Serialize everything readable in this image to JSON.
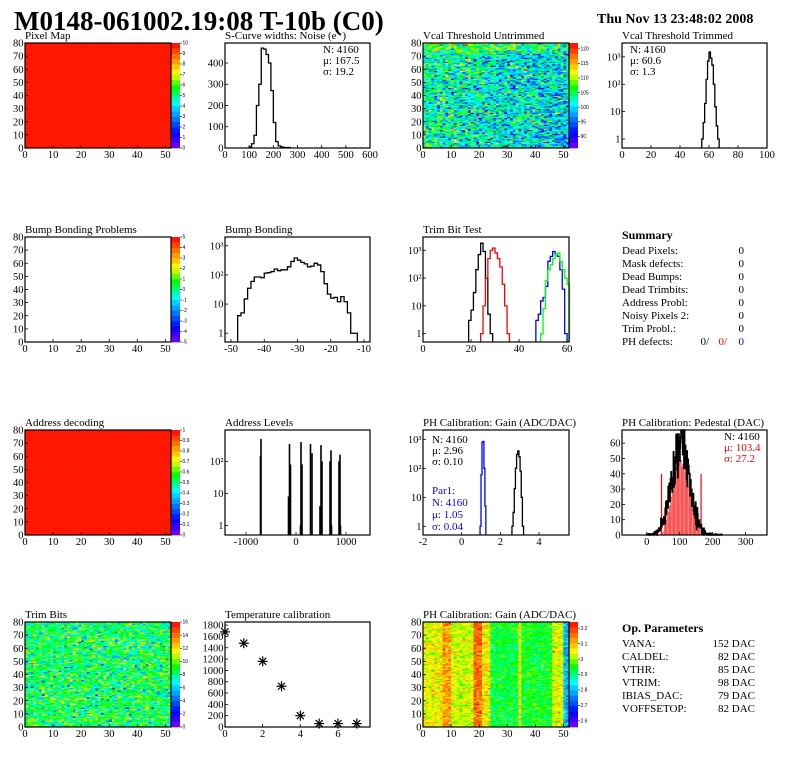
{
  "header": {
    "title": "M0148-061002.19:08 T-10b (C0)",
    "datetime": "Thu Nov 13 23:48:02 2008"
  },
  "colors": {
    "palette": [
      "#7f00ff",
      "#0000ff",
      "#0080ff",
      "#00ffff",
      "#00ff00",
      "#ffff00",
      "#ff8000",
      "#ff0000"
    ],
    "red": "#ff0000",
    "blue": "#0000ff",
    "green": "#00ff00",
    "black": "#000000"
  },
  "chart_data": [
    {
      "id": "pixel-map",
      "title": "Pixel Map",
      "type": "heatmap",
      "xrange": [
        0,
        52
      ],
      "yrange": [
        0,
        80
      ],
      "xticks": [
        0,
        10,
        20,
        30,
        40,
        50
      ],
      "yticks": [
        0,
        10,
        20,
        30,
        40,
        50,
        60,
        70,
        80
      ],
      "zrange": [
        0,
        10
      ],
      "zticks": [
        0,
        1,
        2,
        3,
        4,
        5,
        6,
        7,
        8,
        9,
        10
      ],
      "content": "all pixels at maximum (10)"
    },
    {
      "id": "s-curve-noise",
      "title": "S-Curve widths: Noise (e⁻)",
      "type": "bar",
      "xrange": [
        0,
        600
      ],
      "yrange": [
        0,
        494
      ],
      "xticks": [
        0,
        100,
        200,
        300,
        400,
        500,
        600
      ],
      "yticks": [
        0,
        100,
        200,
        300,
        400
      ],
      "series": [
        {
          "color": "#000000",
          "start": 100,
          "width": 10,
          "counts": [
            5,
            20,
            60,
            200,
            300,
            470,
            465,
            440,
            400,
            270,
            120,
            30,
            10,
            5,
            3,
            2,
            2
          ]
        }
      ],
      "stats": [
        {
          "text": "N: 4160",
          "color": "#000000"
        },
        {
          "text": "μ: 167.5",
          "color": "#000000"
        },
        {
          "text": "σ: 19.2",
          "color": "#000000"
        }
      ]
    },
    {
      "id": "vcal-threshold-untrimmed",
      "title": "Vcal Threshold Untrimmed",
      "type": "heatmap",
      "xrange": [
        0,
        52
      ],
      "yrange": [
        0,
        80
      ],
      "xticks": [
        0,
        10,
        20,
        30,
        40,
        50
      ],
      "yticks": [
        0,
        10,
        20,
        30,
        40,
        50,
        60,
        70,
        80
      ],
      "zrange": [
        86,
        122
      ],
      "zticks": [
        90,
        95,
        100,
        105,
        110,
        115,
        120
      ]
    },
    {
      "id": "vcal-threshold-trimmed",
      "title": "Vcal Threshold Trimmed",
      "type": "bar",
      "ylog": true,
      "xrange": [
        0,
        100
      ],
      "yrange": [
        0.47,
        3200
      ],
      "xticks": [
        0,
        20,
        40,
        60,
        80,
        100
      ],
      "yticks": [
        1,
        10,
        100,
        1000
      ],
      "ytick_labels": [
        "1",
        "10",
        "10²",
        "10³"
      ],
      "series": [
        {
          "color": "#000000",
          "start": 55,
          "width": 1,
          "counts": [
            1,
            4,
            20,
            150,
            700,
            1500,
            900,
            500,
            100,
            15,
            3,
            1
          ]
        }
      ],
      "stats": [
        {
          "text": "N: 4160",
          "color": "#000000"
        },
        {
          "text": "μ: 60.6",
          "color": "#000000"
        },
        {
          "text": "σ:  1.3",
          "color": "#000000"
        }
      ]
    },
    {
      "id": "bump-bonding-problems",
      "title": "Bump Bonding Problems",
      "type": "heatmap",
      "xrange": [
        0,
        52
      ],
      "yrange": [
        0,
        80
      ],
      "xticks": [
        0,
        10,
        20,
        30,
        40,
        50
      ],
      "yticks": [
        0,
        10,
        20,
        30,
        40,
        50,
        60,
        70,
        80
      ],
      "zrange": [
        -5,
        5
      ],
      "zticks": [
        -5,
        -4,
        -3,
        -2,
        -1,
        0,
        1,
        2,
        3,
        4,
        5
      ],
      "content": "empty"
    },
    {
      "id": "bump-bonding",
      "title": "Bump Bonding",
      "type": "bar",
      "ylog": true,
      "xrange": [
        -51.8,
        -8.2
      ],
      "yrange": [
        0.5,
        2000
      ],
      "xticks": [
        -50,
        -40,
        -30,
        -20,
        -10
      ],
      "yticks": [
        1,
        10,
        100,
        1000
      ],
      "ytick_labels": [
        "1",
        "10",
        "10²",
        "10³"
      ],
      "series": [
        {
          "color": "#000000",
          "start": -48,
          "width": 1,
          "counts": [
            4,
            5,
            15,
            35,
            60,
            85,
            85,
            80,
            115,
            120,
            130,
            160,
            140,
            150,
            150,
            190,
            290,
            380,
            320,
            270,
            240,
            190,
            200,
            250,
            220,
            130,
            50,
            22,
            16,
            17,
            12,
            18,
            12,
            5,
            1,
            1
          ]
        }
      ]
    },
    {
      "id": "trim-bit-test",
      "title": "Trim Bit Test",
      "type": "bar",
      "ylog": true,
      "xrange": [
        0,
        60.8
      ],
      "yrange": [
        0.5,
        3000
      ],
      "xticks": [
        0,
        20,
        40,
        60
      ],
      "yticks": [
        1,
        10,
        100,
        1000
      ],
      "ytick_labels": [
        "1",
        "10",
        "10²",
        "10³"
      ],
      "series": [
        {
          "color": "#000000",
          "start": 19,
          "width": 1,
          "counts": [
            3,
            7,
            30,
            200,
            700,
            1800,
            900,
            100,
            5,
            1
          ]
        },
        {
          "color": "#ff0000",
          "start": 24,
          "width": 1,
          "counts": [
            1,
            10,
            100,
            500,
            1000,
            1200,
            800,
            500,
            250,
            60,
            10,
            1
          ]
        },
        {
          "color": "#0000ff",
          "start": 47,
          "width": 1,
          "counts": [
            3,
            5,
            15,
            20,
            50,
            400,
            600,
            900,
            700,
            600,
            200,
            40,
            1
          ]
        },
        {
          "color": "#00ff00",
          "start": 49,
          "width": 1,
          "counts": [
            1,
            8,
            80,
            200,
            300,
            500,
            700,
            800,
            400,
            200,
            100,
            60
          ]
        }
      ]
    },
    {
      "id": "address-decoding",
      "title": "Address decoding",
      "type": "heatmap",
      "xrange": [
        0,
        52
      ],
      "yrange": [
        0,
        80
      ],
      "xticks": [
        0,
        10,
        20,
        30,
        40,
        50
      ],
      "yticks": [
        0,
        10,
        20,
        30,
        40,
        50,
        60,
        70,
        80
      ],
      "zrange": [
        0,
        1
      ],
      "zticks": [
        0,
        0.1,
        0.2,
        0.3,
        0.4,
        0.5,
        0.6,
        0.7,
        0.8,
        0.9,
        1
      ],
      "content": "all pixels at maximum (1)"
    },
    {
      "id": "address-levels",
      "title": "Address Levels",
      "type": "bar",
      "ylog": true,
      "xrange": [
        -1420,
        1480
      ],
      "yrange": [
        0.5,
        950
      ],
      "xticks": [
        -1000,
        0,
        1000
      ],
      "yticks": [
        1,
        10,
        100
      ],
      "ytick_labels": [
        "1",
        "10",
        "10²"
      ],
      "spikes": [
        [
          -710,
          150
        ],
        [
          -700,
          500
        ],
        [
          -150,
          8
        ],
        [
          -130,
          350
        ],
        [
          -110,
          80
        ],
        [
          90,
          1
        ],
        [
          100,
          400
        ],
        [
          120,
          80
        ],
        [
          290,
          350
        ],
        [
          320,
          180
        ],
        [
          480,
          4
        ],
        [
          500,
          320
        ],
        [
          520,
          100
        ],
        [
          680,
          100
        ],
        [
          700,
          220
        ],
        [
          710,
          1
        ],
        [
          860,
          100
        ],
        [
          880,
          160
        ],
        [
          890,
          1
        ]
      ]
    },
    {
      "id": "ph-calibration-gain",
      "title": "PH Calibration: Gain (ADC/DAC)",
      "type": "bar",
      "ylog": true,
      "xrange": [
        -2,
        5.55
      ],
      "yrange": [
        0.5,
        2100
      ],
      "xticks": [
        -2,
        0,
        2,
        4
      ],
      "yticks": [
        1,
        10,
        100,
        1000
      ],
      "ytick_labels": [
        "1",
        "10",
        "10²",
        "10³"
      ],
      "series": [
        {
          "color": "#0000ff",
          "start": 0.95,
          "width": 0.05,
          "counts": [
            1,
            60,
            800,
            850,
            100,
            5
          ]
        },
        {
          "color": "#000000",
          "start": 2.6,
          "width": 0.06,
          "counts": [
            1,
            3,
            20,
            100,
            300,
            400,
            250,
            80,
            10,
            1
          ]
        }
      ],
      "stats": [
        {
          "text": "N: 4160",
          "color": "#000000"
        },
        {
          "text": "μ: 2.96",
          "color": "#000000"
        },
        {
          "text": "σ: 0.10",
          "color": "#000000"
        }
      ],
      "stats2": [
        {
          "text": "Par1:",
          "color": "#0000ff"
        },
        {
          "text": "N: 4160",
          "color": "#0000ff"
        },
        {
          "text": "μ: 1.05",
          "color": "#0000ff"
        },
        {
          "text": "σ: 0.04",
          "color": "#0000ff"
        }
      ]
    },
    {
      "id": "ph-calibration-pedestal",
      "title": "PH Calibration: Pedestal (DAC)",
      "type": "bar",
      "xrange": [
        -75,
        365
      ],
      "yrange": [
        0,
        68.6
      ],
      "xticks": [
        0,
        100,
        200,
        300
      ],
      "yticks": [
        0,
        10,
        20,
        30,
        40,
        50,
        60
      ],
      "gauss": {
        "n": 4160,
        "mean": 103.4,
        "sigma": 27.2
      },
      "cut_range": [
        45,
        165
      ],
      "stats": [
        {
          "text": "N: 4160",
          "color": "#000000"
        },
        {
          "text": "μ: 103.4",
          "color": "#ff0000"
        },
        {
          "text": "σ: 27.2",
          "color": "#ff0000"
        }
      ]
    },
    {
      "id": "trim-bits",
      "title": "Trim Bits",
      "type": "heatmap",
      "xrange": [
        0,
        52
      ],
      "yrange": [
        0,
        80
      ],
      "xticks": [
        0,
        10,
        20,
        30,
        40,
        50
      ],
      "yticks": [
        0,
        10,
        20,
        30,
        40,
        50,
        60,
        70,
        80
      ],
      "zrange": [
        0,
        16
      ],
      "zticks": [
        0,
        2,
        4,
        6,
        8,
        10,
        12,
        14,
        16
      ]
    },
    {
      "id": "temperature-calibration",
      "title": "Temperature calibration",
      "type": "scatter",
      "xrange": [
        0,
        7.7
      ],
      "yrange": [
        0,
        1855
      ],
      "xticks": [
        0,
        2,
        4,
        6
      ],
      "yticks": [
        0,
        200,
        400,
        600,
        800,
        1000,
        1200,
        1400,
        1600,
        1800
      ],
      "points": [
        [
          0,
          1680
        ],
        [
          1,
          1480
        ],
        [
          2,
          1160
        ],
        [
          3,
          720
        ],
        [
          4,
          200
        ],
        [
          5,
          60
        ],
        [
          6,
          60
        ],
        [
          7,
          60
        ]
      ]
    },
    {
      "id": "ph-calibration-gain-map",
      "title": "PH Calibration: Gain (ADC/DAC)",
      "type": "heatmap",
      "xrange": [
        0,
        52
      ],
      "yrange": [
        0,
        80
      ],
      "xticks": [
        0,
        10,
        20,
        30,
        40,
        50
      ],
      "yticks": [
        0,
        10,
        20,
        30,
        40,
        50,
        60,
        70,
        80
      ],
      "zrange": [
        2.56,
        3.24
      ],
      "zticks": [
        2.6,
        2.7,
        2.8,
        2.9,
        3,
        3.1,
        3.2
      ]
    }
  ],
  "summary": {
    "title": "Summary",
    "rows": [
      {
        "label": "Dead Pixels:",
        "value": "0"
      },
      {
        "label": "Mask defects:",
        "value": "0"
      },
      {
        "label": "Dead Bumps:",
        "value": "0"
      },
      {
        "label": "Dead Trimbits:",
        "value": "0"
      },
      {
        "label": "Address Probl:",
        "value": "0"
      },
      {
        "label": "Noisy Pixels 2:",
        "value": "0"
      },
      {
        "label": "Trim Probl.:",
        "value": "0"
      }
    ],
    "ph_defects": {
      "label": "PH defects:",
      "values": [
        "0/",
        "0/",
        "0"
      ],
      "colors": [
        "#000000",
        "#ff0000",
        "#0000ff"
      ]
    }
  },
  "op_parameters": {
    "title": "Op. Parameters",
    "rows": [
      {
        "label": "VANA:",
        "value": "152 DAC"
      },
      {
        "label": "CALDEL:",
        "value": "82 DAC"
      },
      {
        "label": "VTHR:",
        "value": "85 DAC"
      },
      {
        "label": "VTRIM:",
        "value": "98 DAC"
      },
      {
        "label": "IBIAS_DAC:",
        "value": "79 DAC"
      },
      {
        "label": "VOFFSETOP:",
        "value": "82 DAC"
      }
    ]
  }
}
